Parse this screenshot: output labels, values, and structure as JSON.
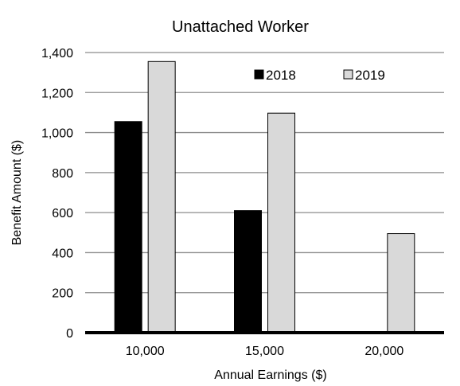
{
  "chart_data": {
    "type": "bar",
    "title": "Unattached  Worker",
    "xlabel": "Annual Earnings  ($)",
    "ylabel": "Benefit  Amount  ($)",
    "categories": [
      "10,000",
      "15,000",
      "20,000"
    ],
    "series": [
      {
        "name": "2018",
        "values": [
          1055,
          610,
          0
        ],
        "color": "#000000"
      },
      {
        "name": "2019",
        "values": [
          1355,
          1097,
          495
        ],
        "color": "#d9d9d9"
      }
    ],
    "ylim": [
      0,
      1400
    ],
    "yticks": [
      0,
      200,
      400,
      600,
      800,
      1000,
      1200,
      1400
    ],
    "ytick_labels": [
      "0",
      "200",
      "400",
      "600",
      "800",
      "1,000",
      "1,200",
      "1,400"
    ],
    "grid": true,
    "legend_position": "top-right"
  }
}
